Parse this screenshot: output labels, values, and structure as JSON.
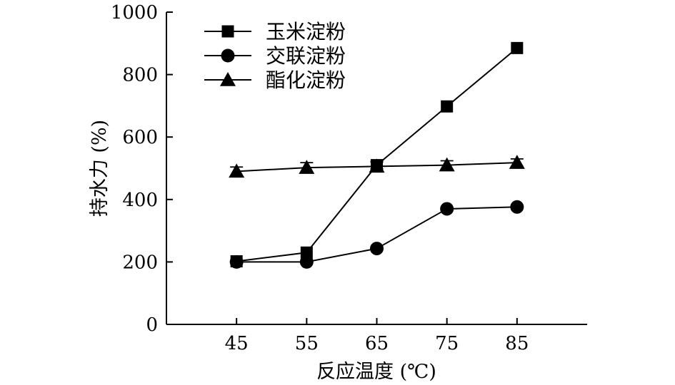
{
  "chart_data": {
    "type": "line",
    "x": [
      45,
      55,
      65,
      75,
      85
    ],
    "x_tick_labels": [
      "45",
      "55",
      "65",
      "75",
      "85"
    ],
    "y_tick_labels": [
      "0",
      "200",
      "400",
      "600",
      "800",
      "1000"
    ],
    "xlabel": "反应温度 (℃)",
    "ylabel": "持水力 (%)",
    "ylim": [
      0,
      1000
    ],
    "xlim": [
      35,
      95
    ],
    "grid": false,
    "legend_position": "top-left",
    "series": [
      {
        "name": "玉米淀粉",
        "marker": "square",
        "values": [
          202,
          230,
          510,
          698,
          885
        ],
        "errors": [
          0,
          0,
          12,
          0,
          0
        ]
      },
      {
        "name": "交联淀粉",
        "marker": "circle",
        "values": [
          200,
          200,
          243,
          370,
          376
        ],
        "errors": [
          0,
          0,
          0,
          0,
          0
        ]
      },
      {
        "name": "酯化淀粉",
        "marker": "triangle",
        "values": [
          490,
          502,
          506,
          510,
          518
        ],
        "errors": [
          14,
          16,
          14,
          14,
          12
        ]
      }
    ],
    "line_color": "#000000"
  }
}
